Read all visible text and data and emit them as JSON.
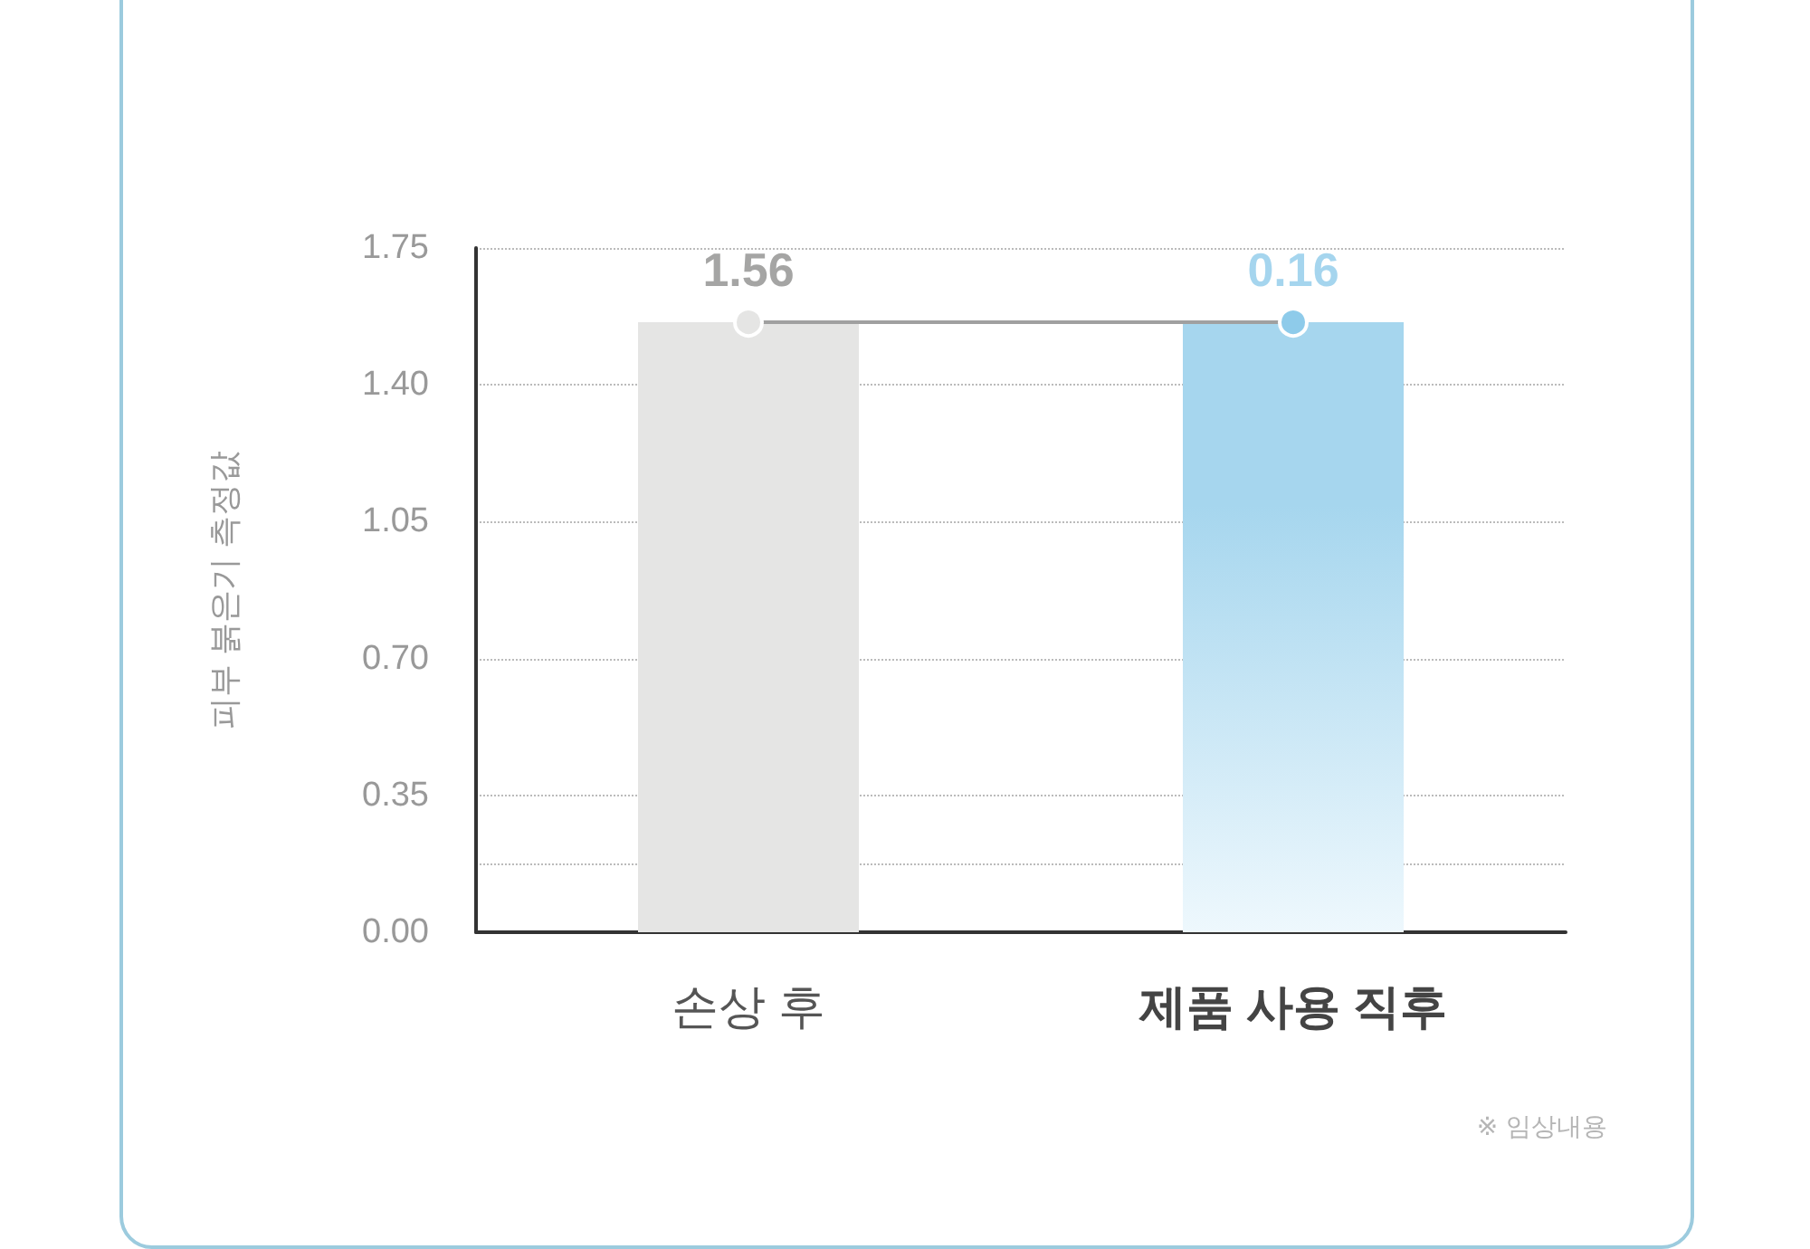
{
  "chart_data": {
    "type": "bar",
    "ylabel": "피부 붉은기 측정값",
    "categories": [
      "손상 후",
      "제품 사용 직후"
    ],
    "series": [
      {
        "colors": [
          "#e5e5e4",
          "#a6d6ee"
        ],
        "values": [
          1.56,
          1.56
        ]
      },
      {
        "type": "line",
        "color": "#a0a0a0",
        "colors": [
          "#e5e5e4",
          "#8ecbea"
        ],
        "values": [
          1.56,
          1.56
        ],
        "marker": "circle"
      }
    ],
    "ylim": [
      0,
      1.75
    ],
    "yticks": [
      {
        "value": 0,
        "label": "0.00"
      },
      {
        "value": 0.175,
        "label": null
      },
      {
        "value": 0.35,
        "label": "0.35"
      },
      {
        "value": 0.7,
        "label": "0.70"
      },
      {
        "value": 1.05,
        "label": "1.05"
      },
      {
        "value": 1.4,
        "label": "1.40"
      },
      {
        "value": 1.75,
        "label": "1.75"
      }
    ],
    "grid": "y",
    "annotations": [
      {
        "text": "1.56",
        "x": "손상 후",
        "y": 1.56
      },
      {
        "text": "0.16",
        "x": "제품 사용 직후",
        "y": 1.56
      },
      "※ 임상내용"
    ]
  }
}
